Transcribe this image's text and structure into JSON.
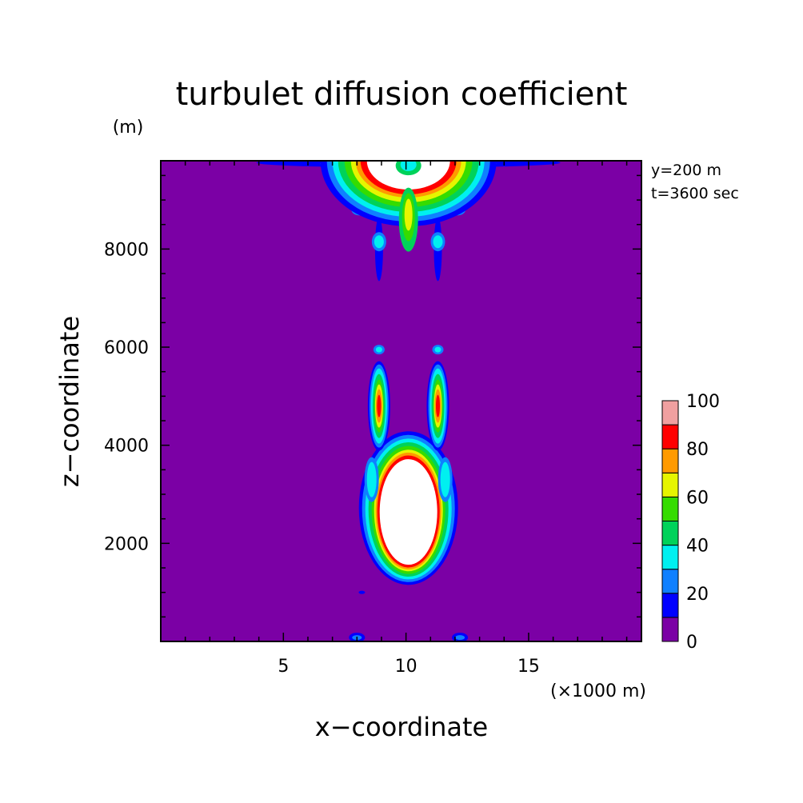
{
  "chart_data": {
    "type": "heatmap",
    "title": "turbulet diffusion coefficient",
    "xlabel": "x−coordinate",
    "ylabel": "z−coordinate",
    "x_unit": "(×1000 m)",
    "y_unit": "(m)",
    "annotations": [
      "y=200 m",
      "t=3600 sec"
    ],
    "xlim": [
      0,
      19.6
    ],
    "ylim": [
      0,
      9800
    ],
    "x_ticks": [
      5,
      10,
      15
    ],
    "y_ticks": [
      2000,
      4000,
      6000,
      8000
    ],
    "x_tick_labels": [
      "5",
      "10",
      "15"
    ],
    "y_tick_labels": [
      "2000",
      "4000",
      "6000",
      "8000"
    ],
    "colorbar": {
      "levels": [
        0,
        10,
        20,
        30,
        40,
        50,
        60,
        70,
        80,
        90,
        100
      ],
      "labels": [
        "0",
        "20",
        "40",
        "60",
        "80",
        "100"
      ],
      "colors": [
        "#7b00a5",
        "#0000ff",
        "#0f80ff",
        "#00f0f0",
        "#00d25a",
        "#35dc00",
        "#e6f500",
        "#ff9a00",
        "#ff0000",
        "#f0a0a0"
      ],
      "above_max_color": "#ffffff"
    },
    "background_value": 0,
    "features": [
      {
        "name": "upper-plume",
        "x_center": 10.1,
        "z_top": 9800,
        "z_bottom": 7400,
        "max_value": ">100"
      },
      {
        "name": "left-column",
        "x_center": 8.9,
        "z_top": 6000,
        "z_bottom": 3900,
        "max_value": 90
      },
      {
        "name": "right-column",
        "x_center": 11.3,
        "z_top": 6000,
        "z_bottom": 3900,
        "max_value": 90
      },
      {
        "name": "lower-bubble",
        "x_center": 10.1,
        "z_top": 3650,
        "z_bottom": 1850,
        "max_value": ">100"
      }
    ]
  }
}
